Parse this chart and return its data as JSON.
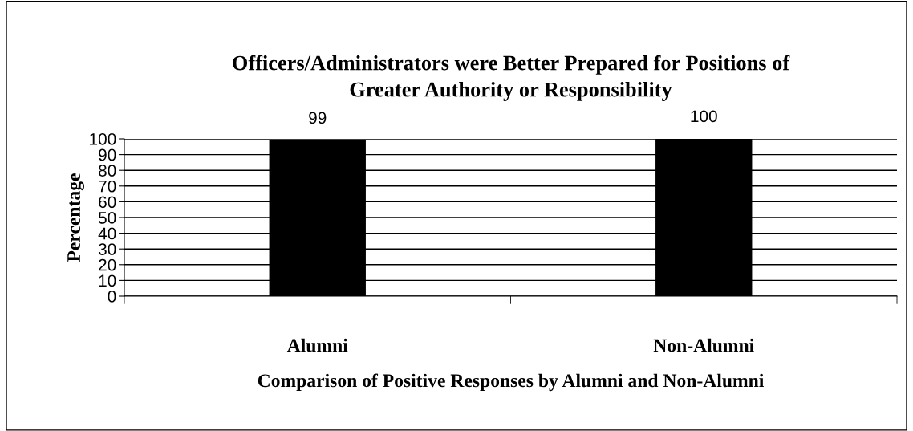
{
  "chart_data": {
    "type": "bar",
    "title": "Officers/Administrators were Better Prepared for Positions of\nGreater Authority or Responsibility",
    "xlabel": "Comparison of Positive Responses by Alumni and Non-Alumni",
    "ylabel": "Percentage",
    "categories": [
      "Alumni",
      "Non-Alumni"
    ],
    "values": [
      99,
      100
    ],
    "color": "#000000",
    "ylim": [
      0,
      100
    ],
    "yticks": [
      0,
      10,
      20,
      30,
      40,
      50,
      60,
      70,
      80,
      90,
      100
    ],
    "grid": "y",
    "data_labels": true,
    "legend": false
  }
}
